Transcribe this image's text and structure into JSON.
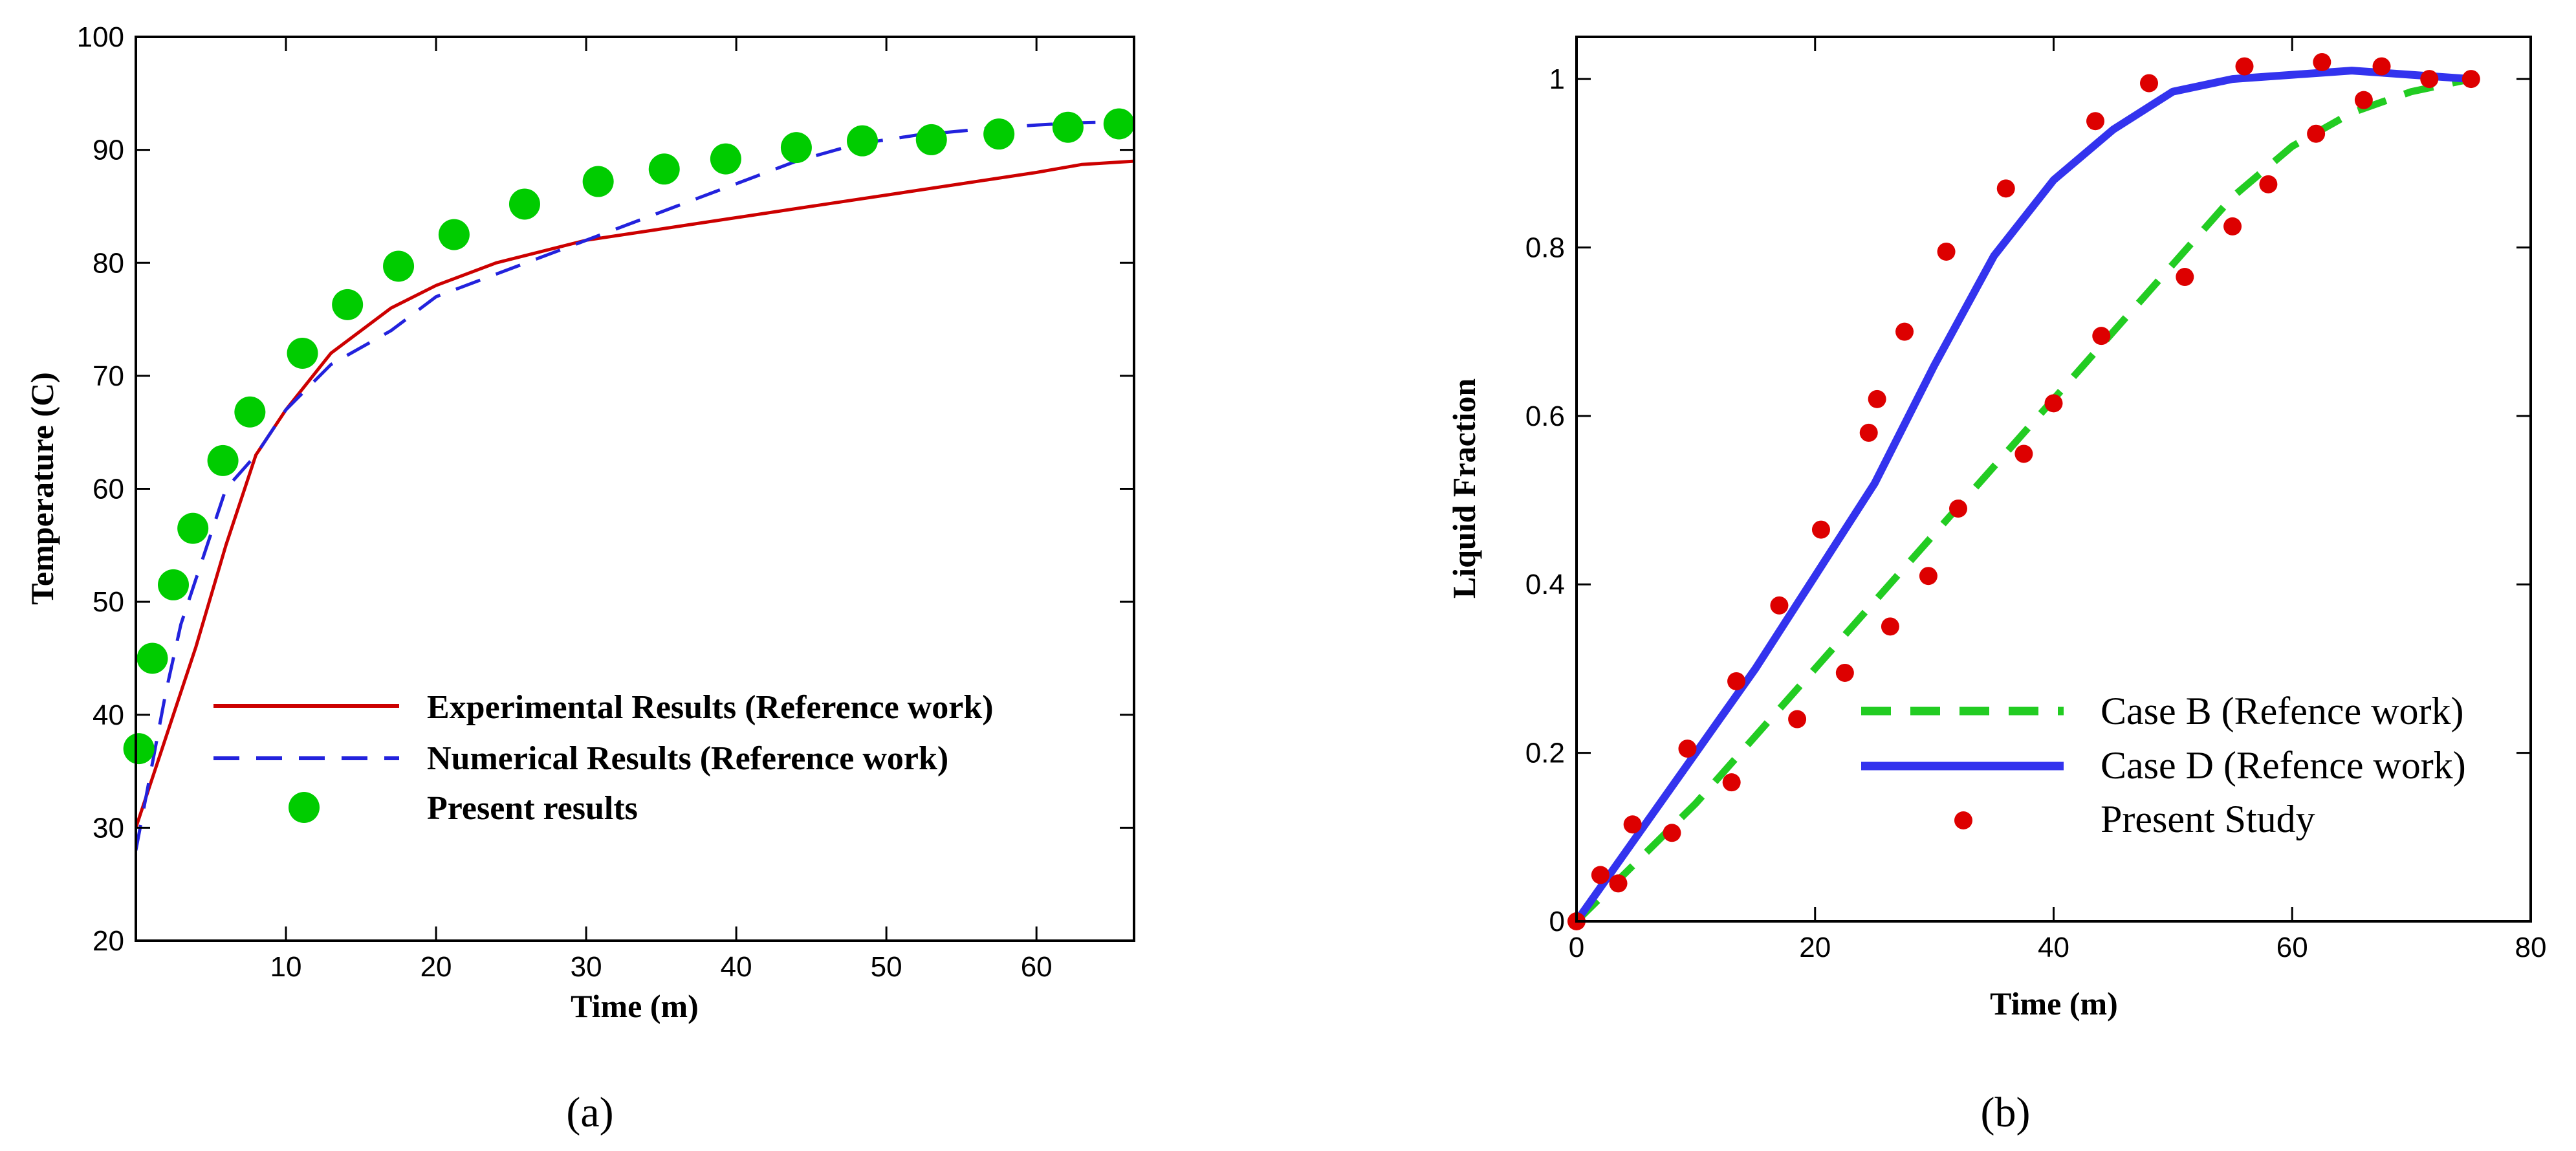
{
  "chart_data": [
    {
      "type": "line",
      "panel_label": "(a)",
      "title": "",
      "xlabel": "Time (m)",
      "ylabel": "Temperature (C)",
      "xlim": [
        0,
        66.5
      ],
      "ylim": [
        20,
        100
      ],
      "x_ticks": [
        10,
        20,
        30,
        40,
        50,
        60
      ],
      "y_ticks": [
        20,
        30,
        40,
        50,
        60,
        70,
        80,
        90,
        100
      ],
      "grid": false,
      "legend_position": "lower-right",
      "series": [
        {
          "name": "Experimental Results (Reference work)",
          "style": "solid",
          "color": "#cc0000",
          "x": [
            0,
            2,
            4,
            6,
            8,
            10,
            13,
            17,
            20,
            24,
            30,
            35,
            40,
            45,
            50,
            55,
            60,
            63,
            66.5
          ],
          "y": [
            30,
            38,
            46,
            55,
            63,
            67,
            72,
            76,
            78,
            80,
            82,
            83,
            84,
            85,
            86,
            87,
            88,
            88.7,
            89
          ]
        },
        {
          "name": "Numerical Results (Reference work)",
          "style": "dashed",
          "color": "#2222dd",
          "x": [
            0,
            1,
            2,
            3,
            4,
            5,
            6,
            8,
            10,
            13,
            17,
            20,
            24,
            28,
            32,
            36,
            40,
            44,
            48,
            52,
            56,
            60,
            63,
            66.5
          ],
          "y": [
            28,
            35,
            42,
            48,
            52,
            56,
            60,
            63,
            67,
            71,
            74,
            77,
            79,
            81,
            83,
            85,
            87,
            89,
            90.5,
            91.3,
            91.8,
            92.2,
            92.4,
            92.5
          ]
        },
        {
          "name": "Present results",
          "style": "markers",
          "color": "#00cc00",
          "x": [
            0.2,
            1.1,
            2.5,
            3.8,
            5.8,
            7.6,
            11.1,
            14.1,
            17.5,
            21.2,
            25.9,
            30.8,
            35.2,
            39.3,
            44.0,
            48.4,
            53.0,
            57.5,
            62.1,
            65.5
          ],
          "y": [
            37,
            45,
            51.5,
            56.5,
            62.5,
            66.8,
            72,
            76.3,
            79.7,
            82.5,
            85.2,
            87.2,
            88.3,
            89.2,
            90.2,
            90.8,
            90.9,
            91.4,
            92,
            92.3
          ]
        }
      ]
    },
    {
      "type": "line",
      "panel_label": "(b)",
      "title": "",
      "xlabel": "Time (m)",
      "ylabel": "Liquid Fraction",
      "xlim": [
        0,
        80
      ],
      "ylim": [
        0,
        1.05
      ],
      "x_ticks": [
        0,
        20,
        40,
        60,
        80
      ],
      "y_ticks": [
        0,
        0.2,
        0.4,
        0.6,
        0.8,
        1
      ],
      "y_tick_labels": [
        "0",
        "0.2",
        "0.4",
        "0.6",
        "0.8",
        "1"
      ],
      "grid": false,
      "legend_position": "lower-right",
      "series": [
        {
          "name": "Case B (Refence work)",
          "style": "dashed",
          "color": "#22cc22",
          "x": [
            0,
            5,
            10,
            15,
            20,
            25,
            30,
            35,
            40,
            45,
            50,
            55,
            60,
            65,
            70,
            75
          ],
          "y": [
            0,
            0.07,
            0.14,
            0.22,
            0.3,
            0.38,
            0.46,
            0.54,
            0.62,
            0.7,
            0.78,
            0.86,
            0.92,
            0.96,
            0.985,
            1
          ]
        },
        {
          "name": "Case D (Refence work)",
          "style": "solid",
          "color": "#3333ee",
          "x": [
            0,
            5,
            10,
            15,
            20,
            25,
            30,
            35,
            40,
            45,
            50,
            55,
            60,
            65,
            70,
            75
          ],
          "y": [
            0,
            0.1,
            0.2,
            0.3,
            0.41,
            0.52,
            0.66,
            0.79,
            0.88,
            0.94,
            0.985,
            1.0,
            1.005,
            1.01,
            1.005,
            1
          ]
        },
        {
          "name": "Present Study",
          "style": "markers",
          "color": "#dd0000",
          "x": [
            0,
            2,
            3.5,
            4.7,
            8,
            9.3,
            13,
            13.4,
            17,
            18.5,
            20.5,
            22.5,
            24.5,
            25.2,
            26.3,
            27.5,
            29.5,
            31,
            32,
            36,
            37.5,
            40,
            43.5,
            44,
            48,
            51,
            55,
            56,
            58,
            62,
            62.5,
            66,
            67.5,
            71.5,
            75
          ],
          "y": [
            0,
            0.055,
            0.045,
            0.115,
            0.105,
            0.205,
            0.165,
            0.285,
            0.375,
            0.24,
            0.465,
            0.295,
            0.58,
            0.62,
            0.35,
            0.7,
            0.41,
            0.795,
            0.49,
            0.87,
            0.555,
            0.615,
            0.95,
            0.695,
            0.995,
            0.765,
            0.825,
            1.015,
            0.875,
            0.935,
            1.02,
            0.975,
            1.015,
            1.0,
            1.0
          ]
        }
      ]
    }
  ],
  "colors": {
    "axis": "#000000",
    "red": "#cc0000",
    "blue": "#2222dd",
    "green": "#00cc00"
  }
}
